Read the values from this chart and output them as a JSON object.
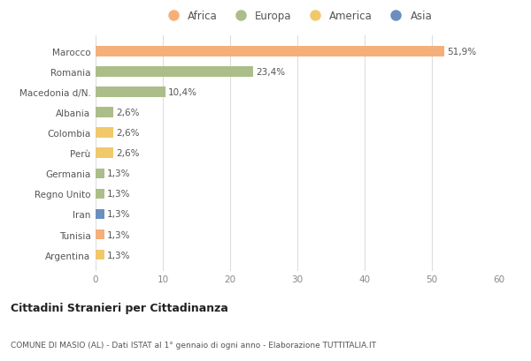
{
  "countries": [
    "Marocco",
    "Romania",
    "Macedonia d/N.",
    "Albania",
    "Colombia",
    "Perù",
    "Germania",
    "Regno Unito",
    "Iran",
    "Tunisia",
    "Argentina"
  ],
  "values": [
    51.9,
    23.4,
    10.4,
    2.6,
    2.6,
    2.6,
    1.3,
    1.3,
    1.3,
    1.3,
    1.3
  ],
  "labels": [
    "51,9%",
    "23,4%",
    "10,4%",
    "2,6%",
    "2,6%",
    "2,6%",
    "1,3%",
    "1,3%",
    "1,3%",
    "1,3%",
    "1,3%"
  ],
  "colors": [
    "#F5B07A",
    "#ABBE8A",
    "#ABBE8A",
    "#ABBE8A",
    "#F0C96A",
    "#F0C96A",
    "#ABBE8A",
    "#ABBE8A",
    "#6A8FBF",
    "#F5B07A",
    "#F0C96A"
  ],
  "continent_colors": {
    "Africa": "#F5B07A",
    "Europa": "#ABBE8A",
    "America": "#F0C96A",
    "Asia": "#6A8FBF"
  },
  "legend_labels": [
    "Africa",
    "Europa",
    "America",
    "Asia"
  ],
  "xlim": [
    0,
    60
  ],
  "xticks": [
    0,
    10,
    20,
    30,
    40,
    50,
    60
  ],
  "title": "Cittadini Stranieri per Cittadinanza",
  "subtitle": "COMUNE DI MASIO (AL) - Dati ISTAT al 1° gennaio di ogni anno - Elaborazione TUTTITALIA.IT",
  "bg_color": "#ffffff",
  "grid_color": "#dddddd",
  "bar_height": 0.5
}
